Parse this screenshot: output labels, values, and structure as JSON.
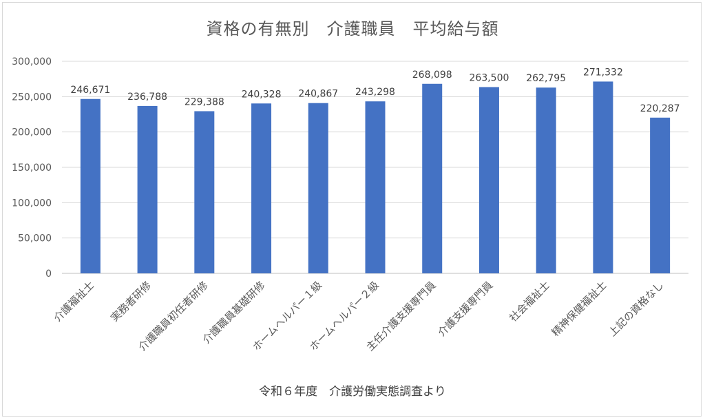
{
  "chart_data": {
    "type": "bar",
    "title": "資格の有無別　介護職員　平均給与額",
    "xlabel": "令和６年度　介護労働実態調査より",
    "ylabel": "",
    "ylim": [
      0,
      300000
    ],
    "y_ticks": [
      0,
      50000,
      100000,
      150000,
      200000,
      250000,
      300000
    ],
    "y_tick_labels": [
      "0",
      "50,000",
      "100,000",
      "150,000",
      "200,000",
      "250,000",
      "300,000"
    ],
    "grid": true,
    "legend": "none",
    "bar_color": "#4472c4",
    "categories": [
      "介護福祉士",
      "実務者研修",
      "介護職員初任者研修",
      "介護職員基礎研修",
      "ホームヘルパー１級",
      "ホームヘルパー２級",
      "主任介護支援専門員",
      "介護支援専門員",
      "社会福祉士",
      "精神保健福祉士",
      "上記の資格なし"
    ],
    "values": [
      246671,
      236788,
      229388,
      240328,
      240867,
      243298,
      268098,
      263500,
      262795,
      271332,
      220287
    ],
    "data_labels": [
      "246,671",
      "236,788",
      "229,388",
      "240,328",
      "240,867",
      "243,298",
      "268,098",
      "263,500",
      "262,795",
      "271,332",
      "220,287"
    ]
  }
}
